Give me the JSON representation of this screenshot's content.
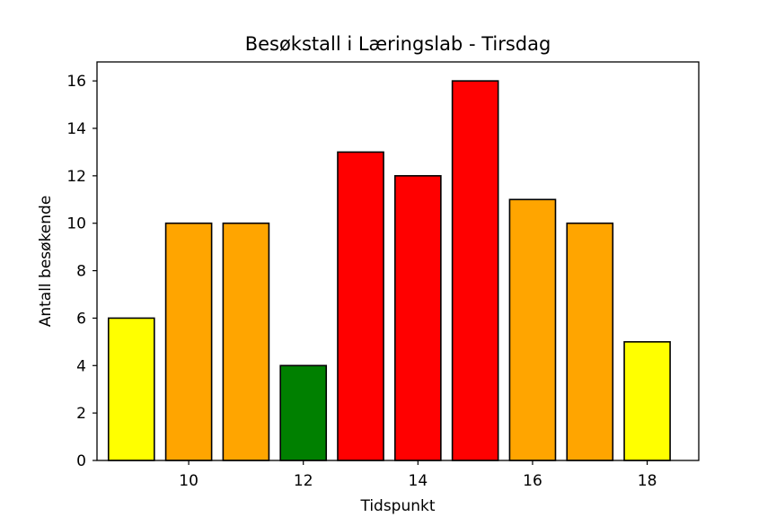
{
  "chart_data": {
    "type": "bar",
    "title": "Besøkstall i Læringslab - Tirsdag",
    "xlabel": "Tidspunkt",
    "ylabel": "Antall besøkende",
    "x": [
      9,
      10,
      11,
      12,
      13,
      14,
      15,
      16,
      17,
      18
    ],
    "values": [
      6,
      10,
      10,
      4,
      13,
      12,
      16,
      11,
      10,
      5
    ],
    "bar_colors": [
      "#ffff00",
      "#ffa500",
      "#ffa500",
      "#008000",
      "#ff0000",
      "#ff0000",
      "#ff0000",
      "#ffa500",
      "#ffa500",
      "#ffff00"
    ],
    "xticks": [
      10,
      12,
      14,
      16,
      18
    ],
    "yticks": [
      0,
      2,
      4,
      6,
      8,
      10,
      12,
      14,
      16
    ],
    "xlim": [
      8.4,
      18.9
    ],
    "ylim": [
      0,
      16.8
    ],
    "grid": false
  }
}
